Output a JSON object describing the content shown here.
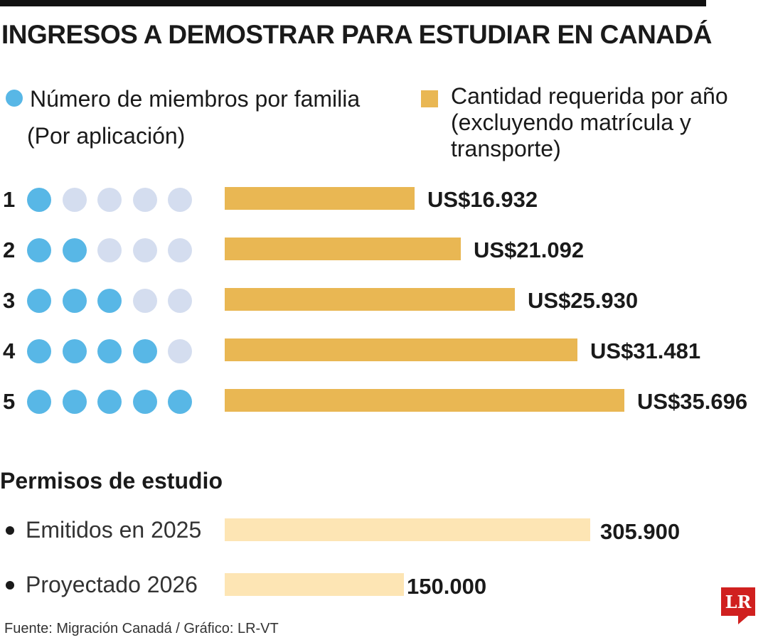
{
  "title": "INGRESOS A DEMOSTRAR PARA ESTUDIAR EN CANADÁ",
  "legend": {
    "members_label": "Número de miembros por familia",
    "members_sublabel": "(Por aplicación)",
    "amount_label": "Cantidad requerida por año (excluyendo matrícula y transporte)"
  },
  "colors": {
    "member_filled": "#58b7e6",
    "member_empty": "#d4ddef",
    "amount_bar": "#e9b753",
    "permit_bar": "#fde5b4",
    "logo": "#d0201f"
  },
  "chart_data": [
    {
      "type": "bar",
      "orientation": "horizontal",
      "categories": [
        "1",
        "2",
        "3",
        "4",
        "5"
      ],
      "values": [
        16932,
        21092,
        25930,
        31481,
        35696
      ],
      "value_labels": [
        "US$16.932",
        "US$21.092",
        "US$25.930",
        "US$31.481",
        "US$35.696"
      ],
      "max_members": 5,
      "series": [
        {
          "name": "Cantidad requerida por año (excluyendo matrícula y transporte)",
          "values": [
            16932,
            21092,
            25930,
            31481,
            35696
          ]
        }
      ],
      "xlim": [
        0,
        35696
      ]
    },
    {
      "type": "bar",
      "orientation": "horizontal",
      "title": "Permisos de estudio",
      "categories": [
        "Emitidos en 2025",
        "Proyectado 2026"
      ],
      "values": [
        305900,
        150000
      ],
      "value_labels": [
        "305.900",
        "150.000"
      ],
      "xlim": [
        0,
        305900
      ]
    }
  ],
  "source": "Fuente: Migración Canadá / Gráfico: LR-VT",
  "logo_text": "LR"
}
